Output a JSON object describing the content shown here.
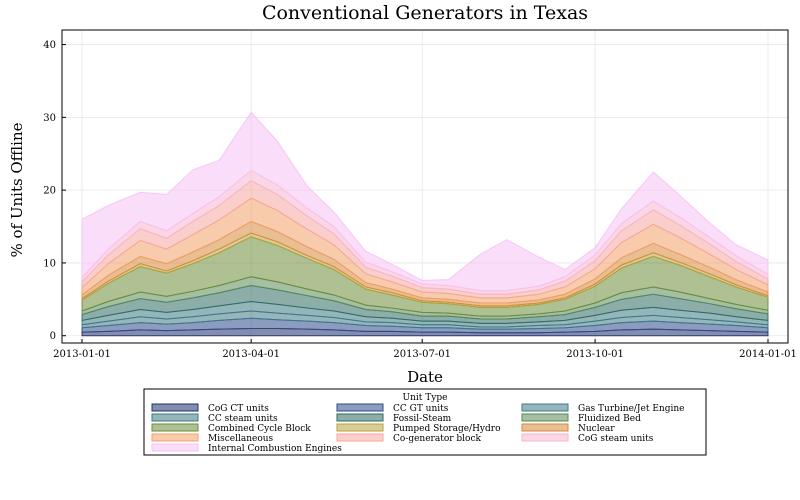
{
  "chart_data": {
    "type": "area",
    "stacked": true,
    "title": "Conventional Generators in Texas",
    "xlabel": "Date",
    "ylabel": "% of Units Offline",
    "x_ticks": [
      "2013-01-01",
      "2013-04-01",
      "2013-07-01",
      "2013-10-01",
      "2014-01-01"
    ],
    "xlim": [
      "2013-01-01",
      "2014-01-01"
    ],
    "y_ticks": [
      0,
      10,
      20,
      30,
      40
    ],
    "ylim": [
      -1,
      42
    ],
    "grid": true,
    "legend": {
      "title": "Unit Type",
      "placement": "bottom-outside",
      "columns": 3
    },
    "x": [
      "2013-01-01",
      "2013-01-15",
      "2013-02-01",
      "2013-02-15",
      "2013-03-01",
      "2013-03-15",
      "2013-04-01",
      "2013-04-15",
      "2013-05-01",
      "2013-05-15",
      "2013-06-01",
      "2013-06-15",
      "2013-07-01",
      "2013-07-15",
      "2013-08-01",
      "2013-08-15",
      "2013-09-01",
      "2013-09-15",
      "2013-10-01",
      "2013-10-15",
      "2013-11-01",
      "2013-11-15",
      "2013-12-01",
      "2013-12-15",
      "2014-01-01"
    ],
    "series": [
      {
        "name": "CoG CT units",
        "color": "#1f2f6b",
        "values": [
          0.5,
          0.6,
          0.8,
          0.7,
          0.8,
          0.9,
          1.0,
          1.0,
          0.9,
          0.8,
          0.6,
          0.6,
          0.5,
          0.5,
          0.4,
          0.4,
          0.4,
          0.5,
          0.6,
          0.8,
          0.9,
          0.8,
          0.7,
          0.6,
          0.5
        ]
      },
      {
        "name": "CC GT units",
        "color": "#2d4a8a",
        "values": [
          0.6,
          0.8,
          1.0,
          0.9,
          1.0,
          1.2,
          1.4,
          1.2,
          1.1,
          1.0,
          0.8,
          0.7,
          0.6,
          0.6,
          0.5,
          0.5,
          0.6,
          0.6,
          0.8,
          1.0,
          1.1,
          1.0,
          0.9,
          0.8,
          0.6
        ]
      },
      {
        "name": "Gas Turbine/Jet Engine",
        "color": "#3f7a88",
        "values": [
          0.4,
          0.6,
          0.8,
          0.7,
          0.8,
          0.9,
          1.0,
          0.9,
          0.8,
          0.7,
          0.5,
          0.5,
          0.4,
          0.4,
          0.3,
          0.3,
          0.4,
          0.4,
          0.6,
          0.7,
          0.8,
          0.7,
          0.6,
          0.5,
          0.4
        ]
      },
      {
        "name": "CC steam units",
        "color": "#3c7a82",
        "values": [
          0.6,
          0.8,
          1.0,
          0.9,
          1.0,
          1.1,
          1.3,
          1.2,
          1.0,
          0.9,
          0.7,
          0.6,
          0.5,
          0.5,
          0.5,
          0.5,
          0.5,
          0.6,
          0.8,
          1.0,
          1.1,
          1.0,
          0.9,
          0.7,
          0.6
        ]
      },
      {
        "name": "Fossil-Steam",
        "color": "#2f6a63",
        "values": [
          0.8,
          1.2,
          1.5,
          1.4,
          1.6,
          1.8,
          2.2,
          2.0,
          1.7,
          1.4,
          1.0,
          0.9,
          0.7,
          0.7,
          0.6,
          0.6,
          0.7,
          0.8,
          1.1,
          1.5,
          1.8,
          1.6,
          1.3,
          1.1,
          0.9
        ]
      },
      {
        "name": "Fluidized Bed",
        "color": "#5a8a55",
        "values": [
          0.5,
          0.7,
          0.9,
          0.8,
          0.9,
          1.0,
          1.2,
          1.1,
          0.9,
          0.8,
          0.6,
          0.5,
          0.5,
          0.4,
          0.4,
          0.4,
          0.4,
          0.5,
          0.6,
          0.9,
          1.0,
          0.9,
          0.7,
          0.6,
          0.5
        ]
      },
      {
        "name": "Combined Cycle Block",
        "color": "#6e8c3a",
        "values": [
          1.5,
          2.5,
          3.5,
          3.2,
          3.8,
          4.5,
          5.5,
          5.0,
          4.2,
          3.5,
          2.2,
          1.8,
          1.4,
          1.3,
          1.2,
          1.2,
          1.3,
          1.6,
          2.3,
          3.4,
          4.2,
          3.7,
          3.0,
          2.4,
          1.8
        ]
      },
      {
        "name": "Pumped Storage/Hydro",
        "color": "#b9a23e",
        "values": [
          0.2,
          0.3,
          0.4,
          0.3,
          0.4,
          0.5,
          0.5,
          0.5,
          0.4,
          0.4,
          0.3,
          0.3,
          0.2,
          0.2,
          0.2,
          0.2,
          0.2,
          0.2,
          0.3,
          0.4,
          0.5,
          0.4,
          0.4,
          0.3,
          0.2
        ]
      },
      {
        "name": "Nuclear",
        "color": "#d9893a",
        "values": [
          0.5,
          0.8,
          1.0,
          1.0,
          1.2,
          1.3,
          1.6,
          1.4,
          1.2,
          1.0,
          0.6,
          0.5,
          0.4,
          0.4,
          0.4,
          0.4,
          0.4,
          0.5,
          0.7,
          1.0,
          1.3,
          1.1,
          0.9,
          0.7,
          0.5
        ]
      },
      {
        "name": "Miscellaneous",
        "color": "#f2a06a",
        "values": [
          1.0,
          1.6,
          2.2,
          2.0,
          2.4,
          2.7,
          3.2,
          2.9,
          2.4,
          2.0,
          1.2,
          1.0,
          0.8,
          0.8,
          0.7,
          0.7,
          0.8,
          1.0,
          1.4,
          2.1,
          2.6,
          2.3,
          1.8,
          1.4,
          1.0
        ]
      },
      {
        "name": "Co-generator block",
        "color": "#f6a7a0",
        "values": [
          0.8,
          1.2,
          1.6,
          1.5,
          1.8,
          2.0,
          2.4,
          2.2,
          1.8,
          1.5,
          0.9,
          0.8,
          0.6,
          0.6,
          0.5,
          0.5,
          0.6,
          0.8,
          1.1,
          1.6,
          2.0,
          1.7,
          1.4,
          1.1,
          0.8
        ]
      },
      {
        "name": "CoG steam units",
        "color": "#f7b6cf",
        "values": [
          0.6,
          0.8,
          1.0,
          1.0,
          1.1,
          1.2,
          1.4,
          1.3,
          1.1,
          1.0,
          0.7,
          0.6,
          0.5,
          0.5,
          0.5,
          0.5,
          0.5,
          0.6,
          0.8,
          1.0,
          1.2,
          1.1,
          0.9,
          0.8,
          0.6
        ]
      },
      {
        "name": "Internal Combustion Engines",
        "color": "#f6c2f4",
        "values": [
          8.0,
          6.0,
          4.0,
          5.0,
          6.0,
          5.0,
          8.0,
          6.0,
          3.0,
          2.0,
          1.5,
          1.0,
          0.5,
          0.8,
          5.0,
          7.0,
          4.0,
          1.0,
          1.0,
          2.0,
          4.0,
          3.0,
          2.0,
          1.5,
          2.0
        ]
      }
    ]
  }
}
